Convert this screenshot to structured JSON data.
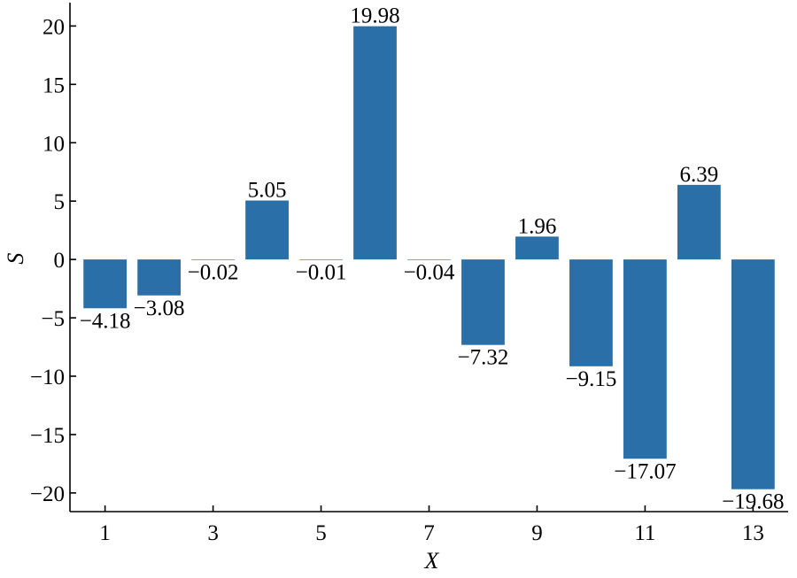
{
  "chart_data": {
    "type": "bar",
    "x": [
      1,
      2,
      3,
      4,
      5,
      6,
      7,
      8,
      9,
      10,
      11,
      12,
      13
    ],
    "values": [
      -4.18,
      -3.08,
      -0.02,
      5.05,
      -0.01,
      19.98,
      -0.04,
      -7.32,
      1.96,
      -9.15,
      -17.07,
      6.39,
      -19.68
    ],
    "data_labels": [
      "−4.18",
      "−3.08",
      "−0.02",
      "5.05",
      "−0.01",
      "19.98",
      "−0.04",
      "−7.32",
      "1.96",
      "−9.15",
      "−17.07",
      "6.39",
      "−19.68"
    ],
    "xlabel": "X",
    "ylabel": "S",
    "xticks": [
      1,
      3,
      5,
      7,
      9,
      11,
      13
    ],
    "xtick_labels": [
      "1",
      "3",
      "5",
      "7",
      "9",
      "11",
      "13"
    ],
    "yticks": [
      -20,
      -15,
      -10,
      -5,
      0,
      5,
      10,
      15,
      20
    ],
    "ytick_labels": [
      "−20",
      "−15",
      "−10",
      "−5",
      "0",
      "5",
      "10",
      "15",
      "20"
    ],
    "xlim": [
      0.35,
      13.65
    ],
    "ylim": [
      -21.6,
      22
    ],
    "bar_width": 0.8,
    "bar_color": "#2a6fa8",
    "grid": false
  }
}
